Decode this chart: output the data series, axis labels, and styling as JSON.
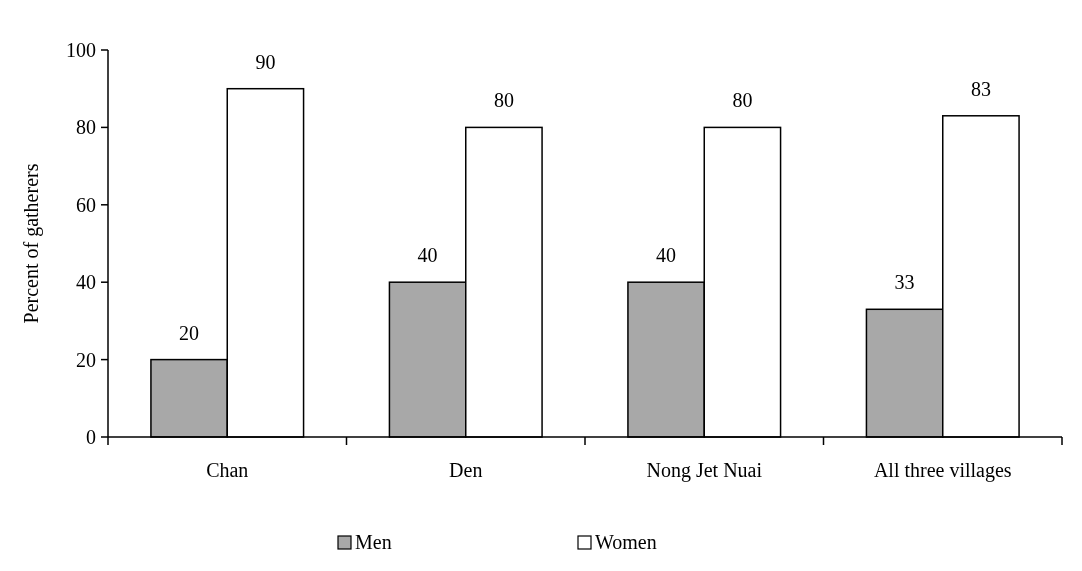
{
  "chart_data": {
    "type": "bar",
    "ylabel": "Percent of gatherers",
    "categories": [
      "Chan",
      "Den",
      "Nong Jet Nuai",
      "All three villages"
    ],
    "series": [
      {
        "name": "Men",
        "color": "#a8a8a8",
        "values": [
          20,
          40,
          40,
          33
        ]
      },
      {
        "name": "Women",
        "color": "#ffffff",
        "values": [
          90,
          80,
          80,
          83
        ]
      }
    ],
    "ylim": [
      0,
      100
    ],
    "yticks": [
      0,
      20,
      40,
      60,
      80,
      100
    ],
    "data_labels": true,
    "legend": "bottom",
    "grid": false
  }
}
